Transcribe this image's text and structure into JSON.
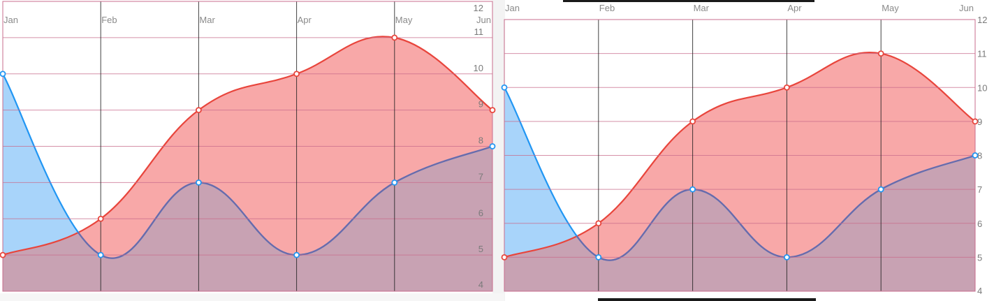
{
  "colors": {
    "series_a_line": "#e8453c",
    "series_a_fill": "#f8a8a8",
    "series_b_line": "#2196f3",
    "series_b_fill": "#a8d4fa",
    "overlap_fill": "#c8a2b3",
    "overlap_line": "#6a6aaa",
    "grid_horizontal": "#c86c8c",
    "grid_vertical": "#222222",
    "frame": "#c86c8c"
  },
  "chart_data": [
    {
      "type": "area",
      "categories": [
        "Jan",
        "Feb",
        "Mar",
        "Apr",
        "May",
        "Jun"
      ],
      "series": [
        {
          "values": [
            5,
            6,
            9,
            10,
            11,
            9
          ]
        },
        {
          "values": [
            10,
            5,
            7,
            5,
            7,
            8
          ]
        }
      ],
      "ylim": [
        4,
        12
      ],
      "yticks": [
        "4",
        "5",
        "6",
        "7",
        "8",
        "9",
        "10",
        "11",
        "12"
      ],
      "yaxis_side": "right",
      "grid": true,
      "legend": "none"
    },
    {
      "type": "area",
      "categories": [
        "Jan",
        "Feb",
        "Mar",
        "Apr",
        "May",
        "Jun"
      ],
      "series": [
        {
          "values": [
            5,
            6,
            9,
            10,
            11,
            9
          ]
        },
        {
          "values": [
            10,
            5,
            7,
            5,
            7,
            8
          ]
        }
      ],
      "ylim": [
        4,
        12
      ],
      "yticks": [
        "4",
        "5",
        "6",
        "7",
        "8",
        "9",
        "10",
        "11",
        "12"
      ],
      "yaxis_side": "right",
      "grid": true,
      "legend": "none"
    }
  ]
}
